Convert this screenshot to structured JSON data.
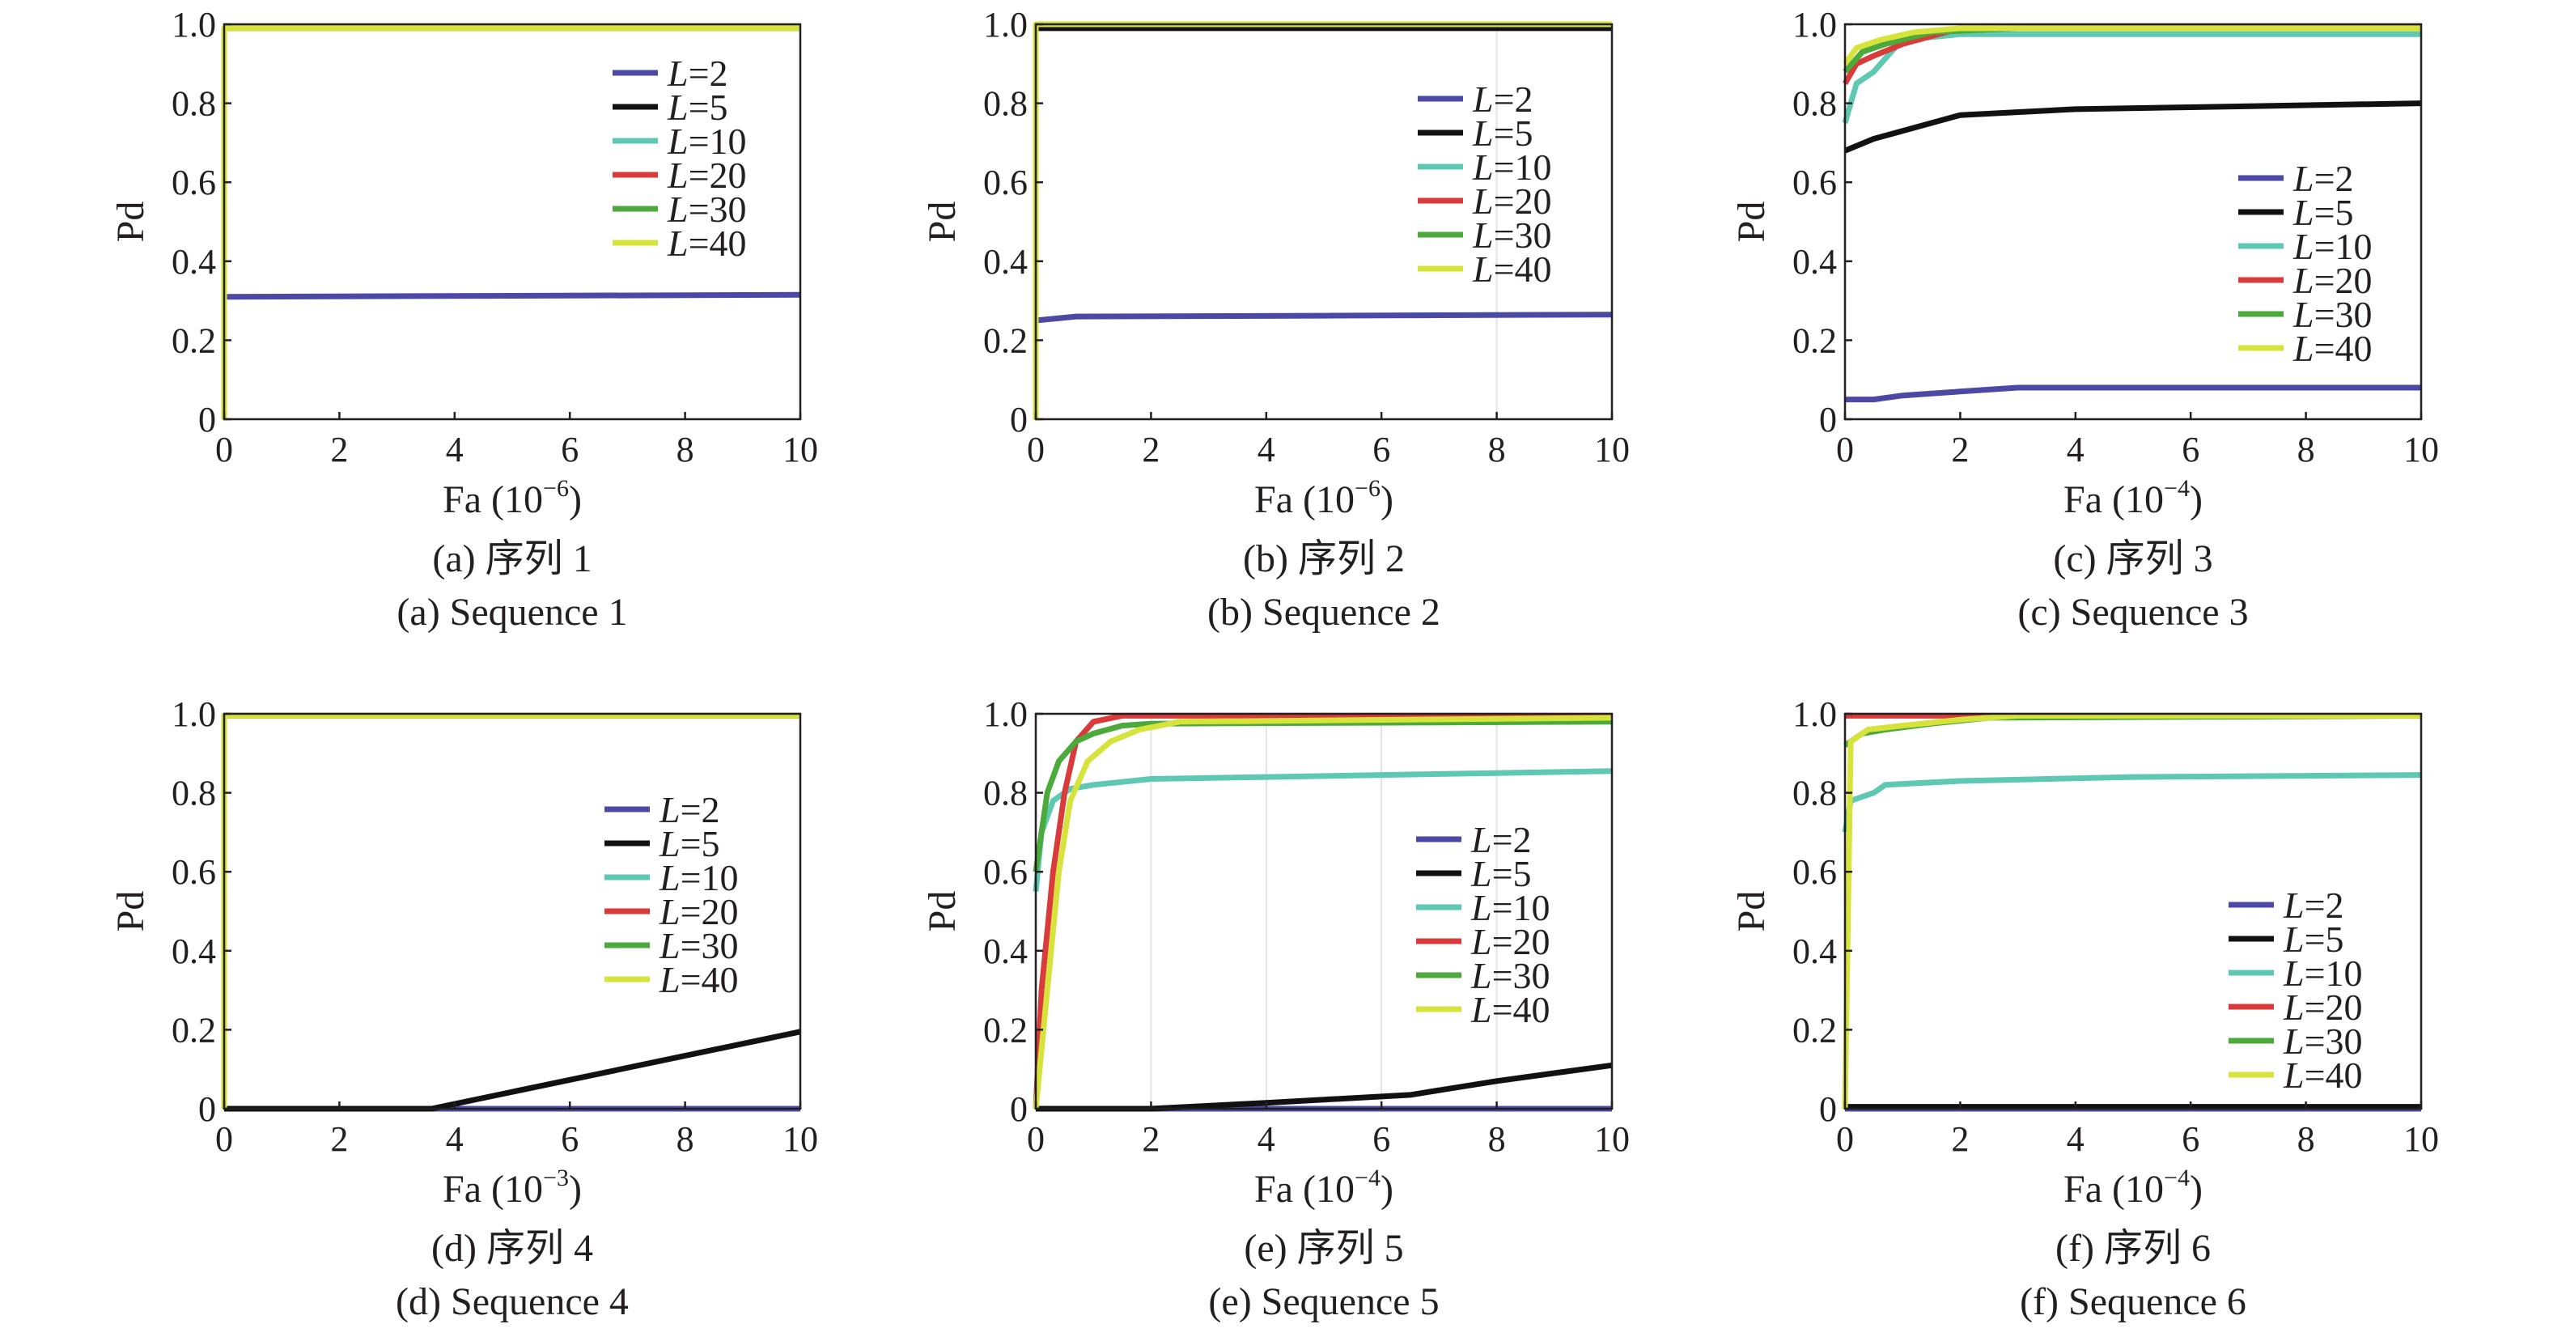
{
  "chart_data": [
    {
      "type": "line",
      "caption_zh": "(a) 序列 1",
      "caption_en": "(a) Sequence 1",
      "xlabel": "Fa (10",
      "xexp": "−6",
      "ylabel": "Pd",
      "xlim": [
        0,
        10
      ],
      "ylim": [
        0,
        1
      ],
      "xticks": [
        0,
        2,
        4,
        6,
        8,
        10
      ],
      "yticks": [
        "0",
        "0.2",
        "0.4",
        "0.6",
        "0.8",
        "1.0"
      ],
      "legend_position": "top-right",
      "series": [
        {
          "name": "2",
          "color": "#4b48a6",
          "points": [
            [
              0,
              0.31
            ],
            [
              10,
              0.315
            ]
          ]
        },
        {
          "name": "5",
          "color": "#111111",
          "points": [
            [
              0,
              0.99
            ],
            [
              10,
              0.99
            ]
          ]
        },
        {
          "name": "10",
          "color": "#5ec8b2",
          "points": [
            [
              0,
              0.99
            ],
            [
              10,
              0.99
            ]
          ]
        },
        {
          "name": "20",
          "color": "#d93a3a",
          "points": [
            [
              0,
              0.99
            ],
            [
              10,
              0.99
            ]
          ]
        },
        {
          "name": "30",
          "color": "#4caa3c",
          "points": [
            [
              0,
              0.99
            ],
            [
              10,
              0.99
            ]
          ]
        },
        {
          "name": "40",
          "color": "#d6e33a",
          "points": [
            [
              0,
              0
            ],
            [
              0,
              0.99
            ],
            [
              10,
              0.99
            ]
          ]
        }
      ]
    },
    {
      "type": "line",
      "caption_zh": "(b) 序列 2",
      "caption_en": "(b) Sequence 2",
      "xlabel": "Fa (10",
      "xexp": "−6",
      "ylabel": "Pd",
      "xlim": [
        0,
        10
      ],
      "ylim": [
        0,
        1
      ],
      "xticks": [
        0,
        2,
        4,
        6,
        8,
        10
      ],
      "yticks": [
        "0",
        "0.2",
        "0.4",
        "0.6",
        "0.8",
        "1.0"
      ],
      "legend_position": "top-right",
      "series": [
        {
          "name": "2",
          "color": "#4b48a6",
          "points": [
            [
              0,
              0.25
            ],
            [
              0.7,
              0.26
            ],
            [
              5,
              0.262
            ],
            [
              10,
              0.265
            ]
          ]
        },
        {
          "name": "5",
          "color": "#111111",
          "points": [
            [
              0,
              0.99
            ],
            [
              10,
              0.99
            ]
          ]
        },
        {
          "name": "10",
          "color": "#5ec8b2",
          "points": [
            [
              0,
              1.0
            ],
            [
              10,
              1.0
            ]
          ]
        },
        {
          "name": "20",
          "color": "#d93a3a",
          "points": [
            [
              0,
              1.0
            ],
            [
              10,
              1.0
            ]
          ]
        },
        {
          "name": "30",
          "color": "#4caa3c",
          "points": [
            [
              0,
              1.0
            ],
            [
              10,
              1.0
            ]
          ]
        },
        {
          "name": "40",
          "color": "#d6e33a",
          "points": [
            [
              0,
              0
            ],
            [
              0,
              1.0
            ],
            [
              10,
              1.0
            ]
          ]
        }
      ]
    },
    {
      "type": "line",
      "caption_zh": "(c) 序列 3",
      "caption_en": "(c) Sequence 3",
      "xlabel": "Fa (10",
      "xexp": "−4",
      "ylabel": "Pd",
      "xlim": [
        0,
        10
      ],
      "ylim": [
        0,
        1
      ],
      "xticks": [
        0,
        2,
        4,
        6,
        8,
        10
      ],
      "yticks": [
        "0",
        "0.2",
        "0.4",
        "0.6",
        "0.8",
        "1.0"
      ],
      "legend_position": "right",
      "series": [
        {
          "name": "2",
          "color": "#4b48a6",
          "points": [
            [
              0,
              0.05
            ],
            [
              0.5,
              0.05
            ],
            [
              1,
              0.06
            ],
            [
              2,
              0.07
            ],
            [
              3,
              0.08
            ],
            [
              10,
              0.08
            ]
          ]
        },
        {
          "name": "5",
          "color": "#111111",
          "points": [
            [
              0,
              0.68
            ],
            [
              0.5,
              0.71
            ],
            [
              1,
              0.73
            ],
            [
              2,
              0.77
            ],
            [
              4,
              0.785
            ],
            [
              6,
              0.79
            ],
            [
              10,
              0.8
            ]
          ]
        },
        {
          "name": "10",
          "color": "#5ec8b2",
          "points": [
            [
              0,
              0.75
            ],
            [
              0.2,
              0.85
            ],
            [
              0.5,
              0.88
            ],
            [
              0.8,
              0.93
            ],
            [
              1,
              0.96
            ],
            [
              2,
              0.975
            ],
            [
              10,
              0.975
            ]
          ]
        },
        {
          "name": "20",
          "color": "#d93a3a",
          "points": [
            [
              0,
              0.85
            ],
            [
              0.2,
              0.9
            ],
            [
              0.5,
              0.92
            ],
            [
              1,
              0.95
            ],
            [
              2,
              0.99
            ],
            [
              10,
              0.995
            ]
          ]
        },
        {
          "name": "30",
          "color": "#4caa3c",
          "points": [
            [
              0,
              0.88
            ],
            [
              0.3,
              0.93
            ],
            [
              0.7,
              0.95
            ],
            [
              1.5,
              0.98
            ],
            [
              3,
              0.99
            ],
            [
              10,
              0.99
            ]
          ]
        },
        {
          "name": "40",
          "color": "#d6e33a",
          "points": [
            [
              0,
              0.9
            ],
            [
              0.2,
              0.94
            ],
            [
              0.6,
              0.96
            ],
            [
              1.2,
              0.98
            ],
            [
              2,
              0.99
            ],
            [
              10,
              0.99
            ]
          ]
        }
      ]
    },
    {
      "type": "line",
      "caption_zh": "(d) 序列 4",
      "caption_en": "(d) Sequence 4",
      "xlabel": "Fa (10",
      "xexp": "−3",
      "ylabel": "Pd",
      "xlim": [
        0,
        10
      ],
      "ylim": [
        0,
        1
      ],
      "xticks": [
        0,
        2,
        4,
        6,
        8,
        10
      ],
      "yticks": [
        "0",
        "0.2",
        "0.4",
        "0.6",
        "0.8",
        "1.0"
      ],
      "legend_position": "right",
      "series": [
        {
          "name": "2",
          "color": "#4b48a6",
          "points": [
            [
              0,
              0
            ],
            [
              10,
              0
            ]
          ]
        },
        {
          "name": "5",
          "color": "#111111",
          "points": [
            [
              0,
              0
            ],
            [
              3.6,
              0
            ],
            [
              10,
              0.195
            ]
          ]
        },
        {
          "name": "10",
          "color": "#5ec8b2",
          "points": [
            [
              0,
              0.995
            ],
            [
              10,
              0.995
            ]
          ]
        },
        {
          "name": "20",
          "color": "#d93a3a",
          "points": [
            [
              0,
              0.995
            ],
            [
              10,
              0.995
            ]
          ]
        },
        {
          "name": "30",
          "color": "#4caa3c",
          "points": [
            [
              0,
              0.995
            ],
            [
              10,
              0.995
            ]
          ]
        },
        {
          "name": "40",
          "color": "#d6e33a",
          "points": [
            [
              0,
              0
            ],
            [
              0,
              0.995
            ],
            [
              10,
              0.995
            ]
          ]
        }
      ]
    },
    {
      "type": "line",
      "caption_zh": "(e) 序列 5",
      "caption_en": "(e) Sequence 5",
      "xlabel": "Fa (10",
      "xexp": "−4",
      "ylabel": "Pd",
      "xlim": [
        0,
        10
      ],
      "ylim": [
        0,
        1
      ],
      "xticks": [
        0,
        2,
        4,
        6,
        8,
        10
      ],
      "yticks": [
        "0",
        "0.2",
        "0.4",
        "0.6",
        "0.8",
        "1.0"
      ],
      "legend_position": "bottom-right",
      "series": [
        {
          "name": "2",
          "color": "#4b48a6",
          "points": [
            [
              0,
              0
            ],
            [
              10,
              0
            ]
          ]
        },
        {
          "name": "5",
          "color": "#111111",
          "points": [
            [
              0,
              0
            ],
            [
              2,
              0
            ],
            [
              4,
              0.015
            ],
            [
              6.5,
              0.035
            ],
            [
              8,
              0.07
            ],
            [
              10,
              0.11
            ]
          ]
        },
        {
          "name": "10",
          "color": "#5ec8b2",
          "points": [
            [
              0,
              0.55
            ],
            [
              0.1,
              0.7
            ],
            [
              0.3,
              0.78
            ],
            [
              0.6,
              0.81
            ],
            [
              1,
              0.82
            ],
            [
              2,
              0.835
            ],
            [
              4,
              0.84
            ],
            [
              6,
              0.845
            ],
            [
              8,
              0.85
            ],
            [
              10,
              0.855
            ]
          ]
        },
        {
          "name": "20",
          "color": "#d93a3a",
          "points": [
            [
              0,
              0
            ],
            [
              0.1,
              0.3
            ],
            [
              0.3,
              0.6
            ],
            [
              0.5,
              0.8
            ],
            [
              0.7,
              0.93
            ],
            [
              1,
              0.98
            ],
            [
              1.5,
              0.995
            ],
            [
              10,
              0.995
            ]
          ]
        },
        {
          "name": "30",
          "color": "#4caa3c",
          "points": [
            [
              0,
              0.6
            ],
            [
              0.2,
              0.8
            ],
            [
              0.4,
              0.88
            ],
            [
              0.7,
              0.93
            ],
            [
              1,
              0.95
            ],
            [
              1.5,
              0.97
            ],
            [
              2,
              0.975
            ],
            [
              10,
              0.98
            ]
          ]
        },
        {
          "name": "40",
          "color": "#d6e33a",
          "points": [
            [
              0,
              0
            ],
            [
              0.2,
              0.3
            ],
            [
              0.4,
              0.6
            ],
            [
              0.6,
              0.78
            ],
            [
              0.9,
              0.88
            ],
            [
              1.3,
              0.93
            ],
            [
              1.8,
              0.96
            ],
            [
              2.5,
              0.98
            ],
            [
              10,
              0.99
            ]
          ]
        }
      ]
    },
    {
      "type": "line",
      "caption_zh": "(f) 序列 6",
      "caption_en": "(f) Sequence 6",
      "xlabel": "Fa (10",
      "xexp": "−4",
      "ylabel": "Pd",
      "xlim": [
        0,
        10
      ],
      "ylim": [
        0,
        1
      ],
      "xticks": [
        0,
        2,
        4,
        6,
        8,
        10
      ],
      "yticks": [
        "0",
        "0.2",
        "0.4",
        "0.6",
        "0.8",
        "1.0"
      ],
      "legend_position": "right",
      "series": [
        {
          "name": "2",
          "color": "#4b48a6",
          "points": [
            [
              0,
              0
            ],
            [
              10,
              0
            ]
          ]
        },
        {
          "name": "5",
          "color": "#111111",
          "points": [
            [
              0,
              0.005
            ],
            [
              10,
              0.005
            ]
          ]
        },
        {
          "name": "10",
          "color": "#5ec8b2",
          "points": [
            [
              0,
              0.7
            ],
            [
              0.1,
              0.78
            ],
            [
              0.3,
              0.79
            ],
            [
              0.5,
              0.8
            ],
            [
              0.7,
              0.82
            ],
            [
              2,
              0.83
            ],
            [
              5,
              0.84
            ],
            [
              10,
              0.845
            ]
          ]
        },
        {
          "name": "20",
          "color": "#d93a3a",
          "points": [
            [
              0,
              0.995
            ],
            [
              10,
              0.995
            ]
          ]
        },
        {
          "name": "30",
          "color": "#4caa3c",
          "points": [
            [
              0,
              0.92
            ],
            [
              0.3,
              0.95
            ],
            [
              0.7,
              0.96
            ],
            [
              1.5,
              0.975
            ],
            [
              2.5,
              0.99
            ],
            [
              10,
              0.995
            ]
          ]
        },
        {
          "name": "40",
          "color": "#d6e33a",
          "points": [
            [
              0,
              0
            ],
            [
              0.1,
              0.93
            ],
            [
              0.4,
              0.96
            ],
            [
              1,
              0.97
            ],
            [
              2,
              0.985
            ],
            [
              3,
              0.995
            ],
            [
              10,
              0.995
            ]
          ]
        }
      ]
    }
  ]
}
